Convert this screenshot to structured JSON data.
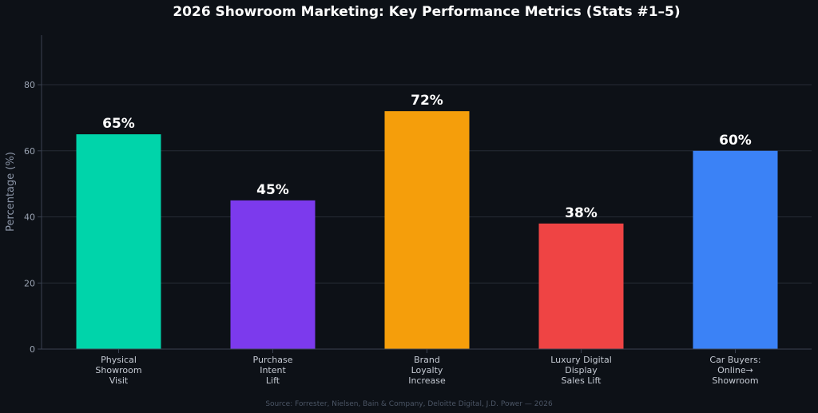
{
  "chart_data": {
    "type": "bar",
    "title": "2026 Showroom Marketing: Key Performance Metrics (Stats #1–5)",
    "xlabel": "",
    "ylabel": "Percentage (%)",
    "ylim": [
      0,
      95
    ],
    "yticks": [
      0,
      20,
      40,
      60,
      80
    ],
    "grid": true,
    "categories": [
      [
        "Physical",
        "Showroom",
        "Visit"
      ],
      [
        "Purchase",
        "Intent",
        "Lift"
      ],
      [
        "Brand",
        "Loyalty",
        "Increase"
      ],
      [
        "Luxury Digital",
        "Display",
        "Sales Lift"
      ],
      [
        "Car Buyers:",
        "Online→",
        "Showroom"
      ]
    ],
    "values": [
      65,
      45,
      72,
      38,
      60
    ],
    "value_labels": [
      "65%",
      "45%",
      "72%",
      "38%",
      "60%"
    ],
    "colors": [
      "#00d4aa",
      "#7c3aed",
      "#f59e0b",
      "#ef4444",
      "#3b82f6"
    ]
  },
  "source_note": "Source: Forrester, Nielsen, Bain & Company, Deloitte Digital, J.D. Power — 2026"
}
